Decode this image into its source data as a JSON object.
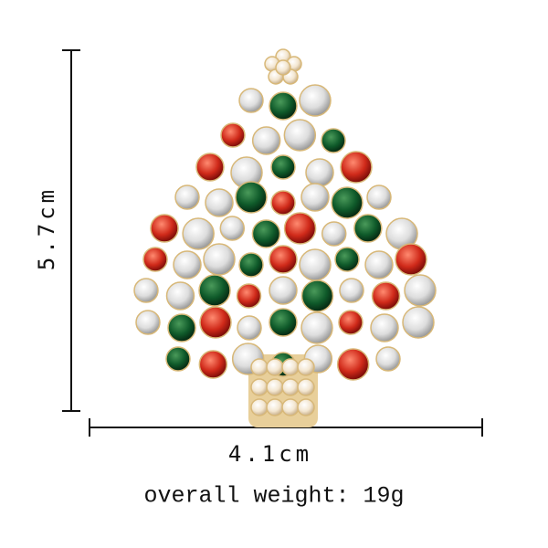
{
  "height_label": "5.7cm",
  "width_label": "4.1cm",
  "weight_label": "overall weight: 19g"
}
